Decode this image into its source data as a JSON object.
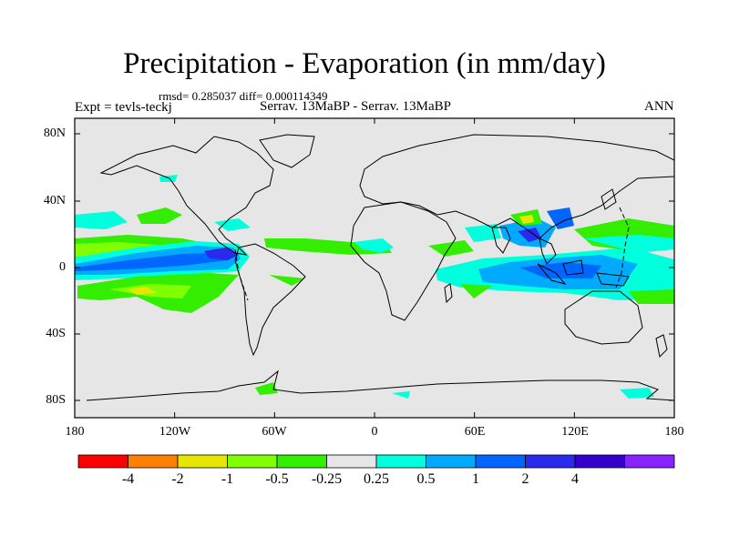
{
  "title": "Precipitation - Evaporation (in mm/day)",
  "stats_line": "rmsd= 0.285037 diff= 0.000114349",
  "experiment_label": "Expt = tevls-teckj",
  "comparison_label": "Serrav.  13MaBP - Serrav.  13MaBP",
  "season_label": "ANN",
  "lat_labels": [
    "80N",
    "40N",
    "0",
    "40S",
    "80S"
  ],
  "lon_labels": [
    "180",
    "120W",
    "60W",
    "0",
    "60E",
    "120E",
    "180"
  ],
  "colorbar": {
    "colors": [
      "#ff0000",
      "#ff8000",
      "#e6e600",
      "#80ff00",
      "#33ee00",
      "#e6e6e6",
      "#00ffdd",
      "#00aaff",
      "#0066ff",
      "#2a2aee",
      "#3300cc",
      "#8822ff"
    ],
    "labels": [
      "-4",
      "-2",
      "-1",
      "-0.5",
      "-0.25",
      "0.25",
      "0.5",
      "1",
      "2",
      "4"
    ]
  },
  "colors": {
    "ocean": "#e6e6e6",
    "coast": "#000000"
  }
}
